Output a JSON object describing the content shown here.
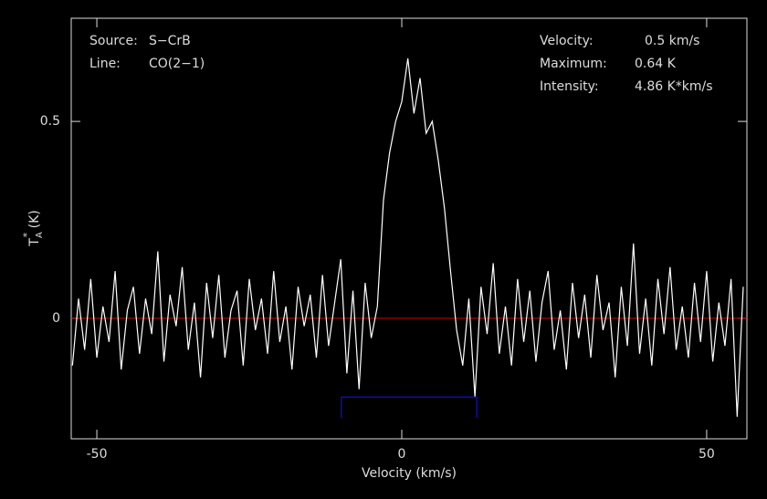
{
  "chart_data": {
    "type": "line",
    "info": {
      "source_label": "Source:",
      "source": "S−CrB",
      "line_label": "Line:",
      "line": "CO(2−1)",
      "velocity_label": "Velocity:",
      "velocity": "0.5 km/s",
      "maximum_label": "Maximum:",
      "maximum": "0.64 K",
      "intensity_label": "Intensity:",
      "intensity": "4.86 K*km/s"
    },
    "xlabel": "Velocity (km/s)",
    "ylabel": {
      "main": "T",
      "sub": "A",
      "sup": "*",
      "unit": " (K)"
    },
    "xlim": [
      -54.2,
      56.6
    ],
    "ylim": [
      -0.306,
      0.762
    ],
    "xticks": [
      -50,
      0,
      50
    ],
    "yticks": [
      0,
      0.5
    ],
    "baseline": {
      "value": 0,
      "color": "#d00000"
    },
    "window": {
      "x": [
        -9.9,
        12.3
      ],
      "y": -0.2,
      "color": "#1010d0"
    },
    "x": [
      -54,
      -53,
      -52,
      -51,
      -50,
      -49,
      -48,
      -47,
      -46,
      -45,
      -44,
      -43,
      -42,
      -41,
      -40,
      -39,
      -38,
      -37,
      -36,
      -35,
      -34,
      -33,
      -32,
      -31,
      -30,
      -29,
      -28,
      -27,
      -26,
      -25,
      -24,
      -23,
      -22,
      -21,
      -20,
      -19,
      -18,
      -17,
      -16,
      -15,
      -14,
      -13,
      -12,
      -11,
      -10,
      -9,
      -8,
      -7,
      -6,
      -5,
      -4,
      -3,
      -2,
      -1,
      0,
      1,
      2,
      3,
      4,
      5,
      6,
      7,
      8,
      9,
      10,
      11,
      12,
      13,
      14,
      15,
      16,
      17,
      18,
      19,
      20,
      21,
      22,
      23,
      24,
      25,
      26,
      27,
      28,
      29,
      30,
      31,
      32,
      33,
      34,
      35,
      36,
      37,
      38,
      39,
      40,
      41,
      42,
      43,
      44,
      45,
      46,
      47,
      48,
      49,
      50,
      51,
      52,
      53,
      54,
      55,
      56
    ],
    "series": [
      {
        "name": "spectrum",
        "color": "#ffffff",
        "values": [
          -0.12,
          0.05,
          -0.08,
          0.1,
          -0.1,
          0.03,
          -0.06,
          0.12,
          -0.13,
          0.02,
          0.08,
          -0.09,
          0.05,
          -0.04,
          0.17,
          -0.11,
          0.06,
          -0.02,
          0.13,
          -0.08,
          0.04,
          -0.15,
          0.09,
          -0.05,
          0.11,
          -0.1,
          0.02,
          0.07,
          -0.12,
          0.1,
          -0.03,
          0.05,
          -0.09,
          0.12,
          -0.06,
          0.03,
          -0.13,
          0.08,
          -0.02,
          0.06,
          -0.1,
          0.11,
          -0.07,
          0.04,
          0.15,
          -0.14,
          0.07,
          -0.18,
          0.09,
          -0.05,
          0.03,
          0.3,
          0.42,
          0.5,
          0.55,
          0.66,
          0.52,
          0.61,
          0.47,
          0.5,
          0.4,
          0.28,
          0.12,
          -0.03,
          -0.12,
          0.05,
          -0.2,
          0.08,
          -0.04,
          0.14,
          -0.09,
          0.03,
          -0.12,
          0.1,
          -0.06,
          0.07,
          -0.11,
          0.04,
          0.12,
          -0.08,
          0.02,
          -0.13,
          0.09,
          -0.05,
          0.06,
          -0.1,
          0.11,
          -0.03,
          0.04,
          -0.15,
          0.08,
          -0.07,
          0.19,
          -0.09,
          0.05,
          -0.12,
          0.1,
          -0.04,
          0.13,
          -0.08,
          0.03,
          -0.1,
          0.09,
          -0.06,
          0.12,
          -0.11,
          0.04,
          -0.07,
          0.1,
          -0.25,
          0.08
        ]
      }
    ]
  }
}
